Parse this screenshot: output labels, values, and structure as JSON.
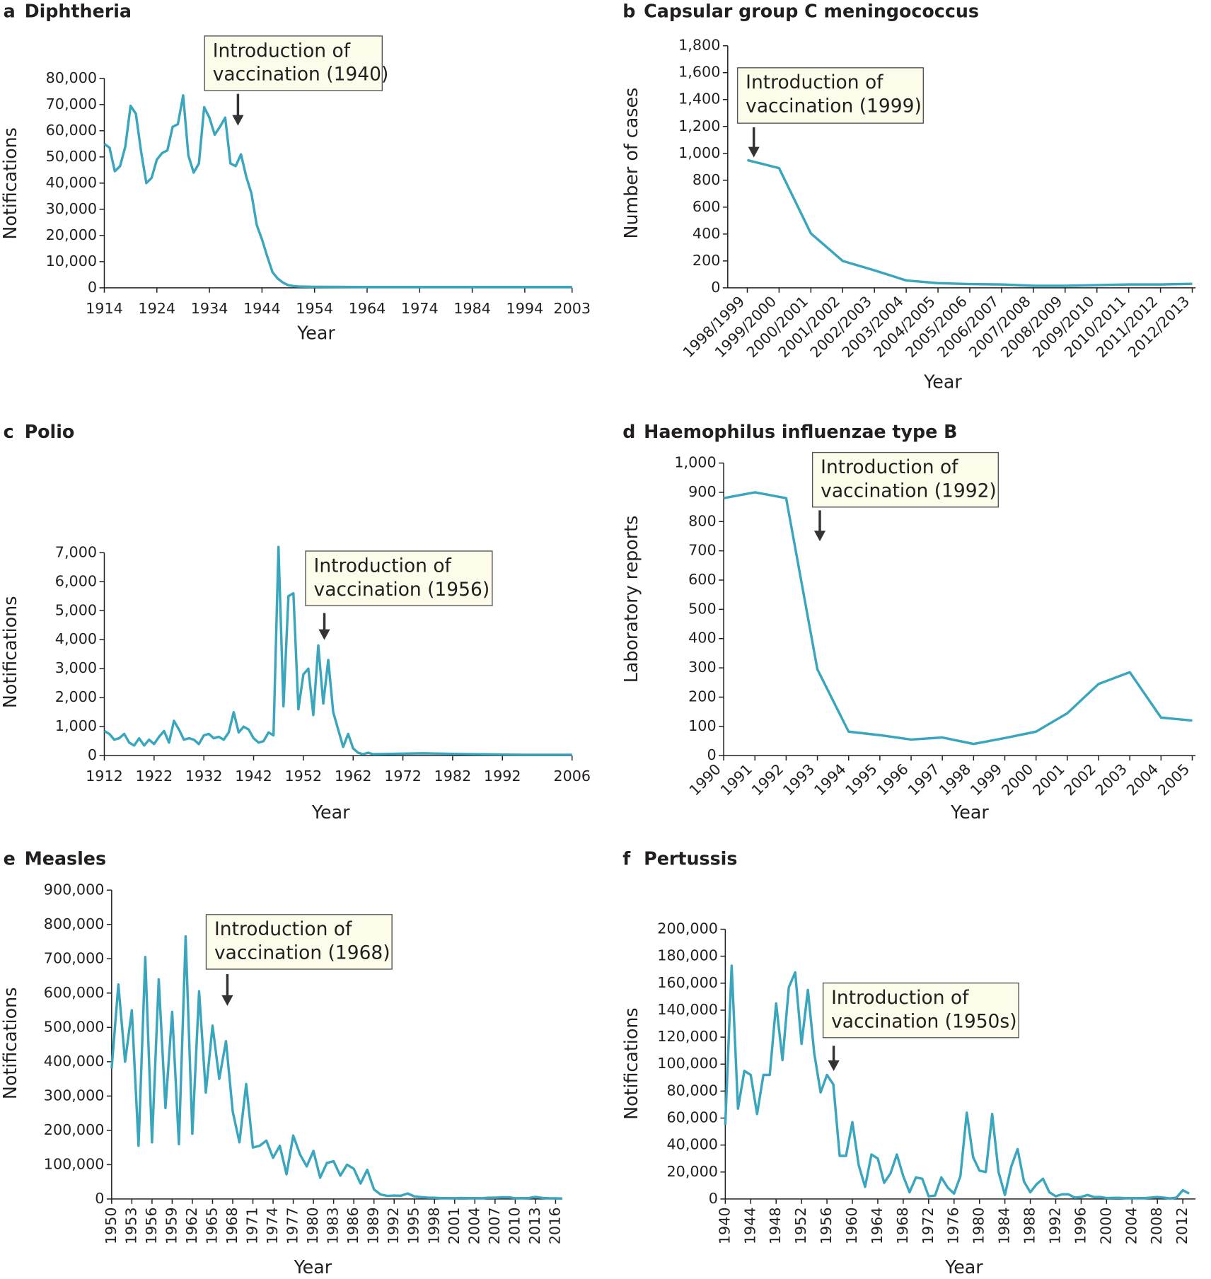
{
  "chart_data": [
    {
      "type": "line",
      "panel": "a",
      "title": "Diphtheria",
      "ylabel": "Notifications",
      "xlabel": "Year",
      "annotation": [
        "Introduction of",
        "vaccination (1940)"
      ],
      "color": "#3aa6bd",
      "x": [
        1914,
        1915,
        1916,
        1917,
        1918,
        1919,
        1920,
        1921,
        1922,
        1923,
        1924,
        1925,
        1926,
        1927,
        1928,
        1929,
        1930,
        1931,
        1932,
        1933,
        1934,
        1935,
        1936,
        1937,
        1938,
        1939,
        1940,
        1941,
        1942,
        1943,
        1944,
        1945,
        1946,
        1947,
        1948,
        1949,
        1950,
        1951,
        1953,
        1963,
        1973,
        1983,
        1993,
        2003
      ],
      "values": [
        55000,
        53500,
        44500,
        46500,
        54000,
        69500,
        66500,
        52000,
        40000,
        42000,
        49000,
        51500,
        52500,
        61500,
        62500,
        73500,
        50500,
        44000,
        47500,
        69000,
        65000,
        58500,
        61500,
        65000,
        47500,
        46500,
        51000,
        42500,
        36000,
        24000,
        18500,
        12000,
        6000,
        3500,
        2000,
        1000,
        700,
        500,
        400,
        300,
        300,
        300,
        300,
        300
      ],
      "xlim": [
        1914,
        2003
      ],
      "xticks": [
        1914,
        1924,
        1934,
        1944,
        1954,
        1964,
        1974,
        1984,
        1994,
        2003
      ],
      "ylim": [
        0,
        80000
      ],
      "yticks": [
        0,
        {
          "value": 10000,
          "label": "10,000"
        },
        {
          "value": 20000,
          "label": "20,000"
        },
        {
          "value": 30000,
          "label": "30,000"
        },
        {
          "value": 40000,
          "label": "40,000"
        },
        {
          "value": 50000,
          "label": "50,000"
        },
        {
          "value": 60000,
          "label": "60,000"
        },
        {
          "value": 70000,
          "label": "70,000"
        },
        {
          "value": 80000,
          "label": "80,000"
        }
      ]
    },
    {
      "type": "line",
      "panel": "b",
      "title": "Capsular group C meningococcus",
      "ylabel": "Number of cases",
      "xlabel": "Year",
      "annotation": [
        "Introduction of",
        "vaccination (1999)"
      ],
      "color": "#3aa6bd",
      "categories": [
        "1998/1999",
        "1999/2000",
        "2000/2001",
        "2001/2002",
        "2002/2003",
        "2003/2004",
        "2004/2005",
        "2005/2006",
        "2006/2007",
        "2007/2008",
        "2008/2009",
        "2009/2010",
        "2010/2011",
        "2011/2012",
        "2012/2013"
      ],
      "values": [
        950,
        890,
        405,
        200,
        130,
        55,
        35,
        28,
        25,
        15,
        15,
        20,
        25,
        25,
        30
      ],
      "ylim": [
        0,
        1800
      ],
      "yticks": [
        0,
        200,
        400,
        600,
        800,
        {
          "value": 1000,
          "label": "1,000"
        },
        {
          "value": 1200,
          "label": "1,200"
        },
        {
          "value": 1400,
          "label": "1,400"
        },
        {
          "value": 1600,
          "label": "1,600"
        },
        {
          "value": 1800,
          "label": "1,800"
        }
      ]
    },
    {
      "type": "line",
      "panel": "c",
      "title": "Polio",
      "ylabel": "Notifications",
      "xlabel": "Year",
      "annotation": [
        "Introduction of",
        "vaccination (1956)"
      ],
      "color": "#3aa6bd",
      "x": [
        1912,
        1913,
        1914,
        1915,
        1916,
        1917,
        1918,
        1919,
        1920,
        1921,
        1922,
        1923,
        1924,
        1925,
        1926,
        1927,
        1928,
        1929,
        1930,
        1931,
        1932,
        1933,
        1934,
        1935,
        1936,
        1937,
        1938,
        1939,
        1940,
        1941,
        1942,
        1943,
        1944,
        1945,
        1946,
        1947,
        1948,
        1949,
        1950,
        1951,
        1952,
        1953,
        1954,
        1955,
        1956,
        1957,
        1958,
        1959,
        1960,
        1961,
        1962,
        1963,
        1964,
        1965,
        1966,
        1976,
        1986,
        1996,
        2006
      ],
      "values": [
        850,
        750,
        550,
        600,
        750,
        450,
        350,
        600,
        350,
        550,
        400,
        650,
        850,
        450,
        1200,
        900,
        550,
        600,
        550,
        400,
        700,
        750,
        600,
        650,
        550,
        800,
        1500,
        800,
        1000,
        900,
        600,
        450,
        500,
        800,
        700,
        7200,
        1700,
        5500,
        5600,
        1600,
        2800,
        3000,
        1400,
        3800,
        1800,
        3300,
        1500,
        900,
        300,
        750,
        250,
        100,
        50,
        100,
        50,
        80,
        50,
        30,
        30
      ],
      "xlim": [
        1912,
        2006
      ],
      "xticks": [
        1912,
        1922,
        1932,
        1942,
        1952,
        1962,
        1972,
        1982,
        1992,
        2006
      ],
      "ylim": [
        0,
        7000
      ],
      "yticks": [
        0,
        {
          "value": 1000,
          "label": "1,000"
        },
        {
          "value": 2000,
          "label": "2,000"
        },
        {
          "value": 3000,
          "label": "3,000"
        },
        {
          "value": 4000,
          "label": "4,000"
        },
        {
          "value": 5000,
          "label": "5,000"
        },
        {
          "value": 6000,
          "label": "6,000"
        },
        {
          "value": 7000,
          "label": "7,000"
        }
      ]
    },
    {
      "type": "line",
      "panel": "d",
      "title": "Haemophilus influenzae type B",
      "ylabel": "Laboratory reports",
      "xlabel": "Year",
      "annotation": [
        "Introduction of",
        "vaccination (1992)"
      ],
      "color": "#3aa6bd",
      "categories": [
        "1990",
        "1991",
        "1992",
        "1993",
        "1994",
        "1995",
        "1996",
        "1997",
        "1998",
        "1999",
        "2000",
        "2001",
        "2002",
        "2003",
        "2004",
        "2005"
      ],
      "values": [
        880,
        900,
        880,
        295,
        82,
        70,
        55,
        62,
        40,
        60,
        82,
        145,
        245,
        285,
        130,
        120
      ],
      "ylim": [
        0,
        1000
      ],
      "yticks": [
        0,
        100,
        200,
        300,
        400,
        500,
        600,
        700,
        800,
        900,
        {
          "value": 1000,
          "label": "1,000"
        }
      ]
    },
    {
      "type": "line",
      "panel": "e",
      "title": "Measles",
      "ylabel": "Notifications",
      "xlabel": "Year",
      "annotation": [
        "Introduction of",
        "vaccination (1968)"
      ],
      "color": "#3aa6bd",
      "x": [
        1950,
        1951,
        1952,
        1953,
        1954,
        1955,
        1956,
        1957,
        1958,
        1959,
        1960,
        1961,
        1962,
        1963,
        1964,
        1965,
        1966,
        1967,
        1968,
        1969,
        1970,
        1971,
        1972,
        1973,
        1974,
        1975,
        1976,
        1977,
        1978,
        1979,
        1980,
        1981,
        1982,
        1983,
        1984,
        1985,
        1986,
        1987,
        1988,
        1989,
        1990,
        1991,
        1992,
        1993,
        1994,
        1995,
        1996,
        1997,
        1998,
        1999,
        2000,
        2001,
        2002,
        2003,
        2004,
        2005,
        2006,
        2007,
        2008,
        2009,
        2010,
        2011,
        2012,
        2013,
        2014,
        2015,
        2016,
        2017
      ],
      "values": [
        380000,
        625000,
        400000,
        550000,
        155000,
        705000,
        165000,
        640000,
        265000,
        545000,
        160000,
        765000,
        190000,
        605000,
        310000,
        505000,
        350000,
        460000,
        255000,
        165000,
        335000,
        150000,
        155000,
        170000,
        120000,
        155000,
        72000,
        185000,
        130000,
        95000,
        140000,
        62000,
        105000,
        110000,
        68000,
        100000,
        88000,
        45000,
        85000,
        28000,
        13000,
        9000,
        10000,
        9500,
        16000,
        7500,
        5600,
        3900,
        3700,
        2400,
        2400,
        2200,
        3000,
        2500,
        2300,
        2100,
        3700,
        3700,
        5000,
        5000,
        2200,
        2300,
        2800,
        6200,
        3200,
        2100,
        1800,
        1500
      ],
      "xlim": [
        1950,
        2017
      ],
      "xticks": [
        1950,
        1953,
        1956,
        1959,
        1962,
        1965,
        1968,
        1971,
        1974,
        1977,
        1980,
        1983,
        1986,
        1989,
        1992,
        1995,
        1998,
        2001,
        2004,
        2007,
        2010,
        2013,
        2016
      ],
      "ylim": [
        0,
        900000
      ],
      "yticks": [
        0,
        {
          "value": 100000,
          "label": "100,000"
        },
        {
          "value": 200000,
          "label": "200,000"
        },
        {
          "value": 300000,
          "label": "300,000"
        },
        {
          "value": 400000,
          "label": "400,000"
        },
        {
          "value": 500000,
          "label": "500,000"
        },
        {
          "value": 600000,
          "label": "600,000"
        },
        {
          "value": 700000,
          "label": "700,000"
        },
        {
          "value": 800000,
          "label": "800,000"
        },
        {
          "value": 900000,
          "label": "900,000"
        }
      ]
    },
    {
      "type": "line",
      "panel": "f",
      "title": "Pertussis",
      "ylabel": "Notifications",
      "xlabel": "Year",
      "annotation": [
        "Introduction of",
        "vaccination (1950s)"
      ],
      "color": "#3aa6bd",
      "x": [
        1940,
        1941,
        1942,
        1943,
        1944,
        1945,
        1946,
        1947,
        1948,
        1949,
        1950,
        1951,
        1952,
        1953,
        1954,
        1955,
        1956,
        1957,
        1958,
        1959,
        1960,
        1961,
        1962,
        1963,
        1964,
        1965,
        1966,
        1967,
        1968,
        1969,
        1970,
        1971,
        1972,
        1973,
        1974,
        1975,
        1976,
        1977,
        1978,
        1979,
        1980,
        1981,
        1982,
        1983,
        1984,
        1985,
        1986,
        1987,
        1988,
        1989,
        1990,
        1991,
        1992,
        1993,
        1994,
        1995,
        1996,
        1997,
        1998,
        1999,
        2000,
        2001,
        2002,
        2003,
        2004,
        2005,
        2006,
        2007,
        2008,
        2009,
        2010,
        2011,
        2012,
        2013
      ],
      "values": [
        55000,
        173000,
        67000,
        95000,
        92000,
        63000,
        92000,
        92000,
        145000,
        103000,
        157000,
        168000,
        115000,
        155000,
        108000,
        79000,
        92000,
        85000,
        32000,
        32000,
        57000,
        25000,
        9000,
        33000,
        30000,
        12000,
        19000,
        33000,
        17000,
        5000,
        16000,
        15000,
        2000,
        2500,
        16000,
        8500,
        4000,
        17000,
        64000,
        31000,
        21000,
        20000,
        63000,
        20000,
        3000,
        24000,
        37000,
        13000,
        5000,
        11000,
        15000,
        5000,
        2000,
        3500,
        3500,
        1000,
        1500,
        3000,
        1500,
        1500,
        700,
        800,
        900,
        600,
        600,
        600,
        600,
        1000,
        1500,
        1000,
        400,
        1000,
        6500,
        4000
      ],
      "xlim": [
        1940,
        2014
      ],
      "xticks": [
        1940,
        1944,
        1948,
        1952,
        1956,
        1960,
        1964,
        1968,
        1972,
        1976,
        1980,
        1984,
        1988,
        1992,
        1996,
        2000,
        2004,
        2008,
        2012
      ],
      "ylim": [
        0,
        200000
      ],
      "yticks": [
        0,
        {
          "value": 20000,
          "label": "20,000"
        },
        {
          "value": 40000,
          "label": "40,000"
        },
        {
          "value": 60000,
          "label": "60,000"
        },
        {
          "value": 80000,
          "label": "80,000"
        },
        {
          "value": 100000,
          "label": "100,000"
        },
        {
          "value": 120000,
          "label": "120,000"
        },
        {
          "value": 140000,
          "label": "140,000"
        },
        {
          "value": 160000,
          "label": "160,000"
        },
        {
          "value": 180000,
          "label": "180,000"
        },
        {
          "value": 200000,
          "label": "200,000"
        }
      ]
    }
  ]
}
